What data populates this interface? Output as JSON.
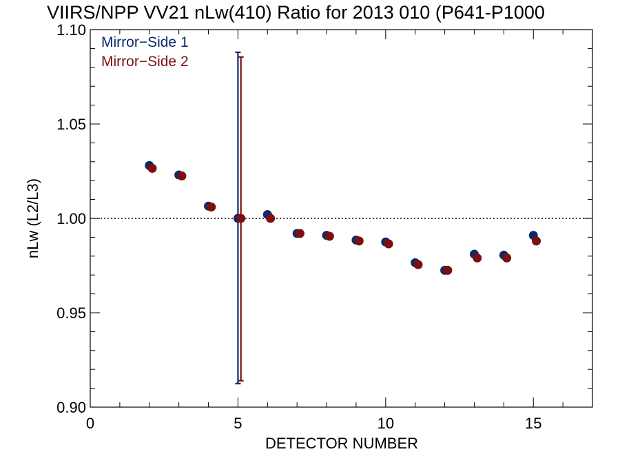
{
  "chart_data": {
    "type": "scatter",
    "title": "VIIRS/NPP VV21 nLw(410) Ratio for 2013 010 (P641-P1000",
    "xlabel": "DETECTOR NUMBER",
    "ylabel": "nLw (L2/L3)",
    "xlim": [
      0,
      17
    ],
    "ylim": [
      0.9,
      1.1
    ],
    "x_ticks": [
      0,
      5,
      10,
      15
    ],
    "x_tick_labels": [
      "0",
      "5",
      "10",
      "15"
    ],
    "y_ticks": [
      0.9,
      0.95,
      1.0,
      1.05,
      1.1
    ],
    "y_tick_labels": [
      "0.90",
      "0.95",
      "1.00",
      "1.05",
      "1.10"
    ],
    "reference_line": 1.0,
    "legend_position": "top-left",
    "series": [
      {
        "name": "Mirror−Side 1",
        "color": "#0d2a6b",
        "points": [
          {
            "x": 2,
            "y": 1.028
          },
          {
            "x": 3,
            "y": 1.023
          },
          {
            "x": 4,
            "y": 1.0065
          },
          {
            "x": 5,
            "y": 1.0
          },
          {
            "x": 6,
            "y": 1.002
          },
          {
            "x": 7,
            "y": 0.992
          },
          {
            "x": 8,
            "y": 0.991
          },
          {
            "x": 9,
            "y": 0.9885
          },
          {
            "x": 10,
            "y": 0.9875
          },
          {
            "x": 11,
            "y": 0.9765
          },
          {
            "x": 12,
            "y": 0.9725
          },
          {
            "x": 13,
            "y": 0.981
          },
          {
            "x": 14,
            "y": 0.9805
          },
          {
            "x": 15,
            "y": 0.991
          }
        ],
        "error_bar": {
          "x": 5,
          "low": 0.9125,
          "high": 1.088
        }
      },
      {
        "name": "Mirror−Side 2",
        "color": "#7a1010",
        "points": [
          {
            "x": 2,
            "y": 1.0265
          },
          {
            "x": 3,
            "y": 1.0225
          },
          {
            "x": 4,
            "y": 1.006
          },
          {
            "x": 5,
            "y": 1.0
          },
          {
            "x": 6,
            "y": 1.0
          },
          {
            "x": 7,
            "y": 0.992
          },
          {
            "x": 8,
            "y": 0.9905
          },
          {
            "x": 9,
            "y": 0.988
          },
          {
            "x": 10,
            "y": 0.9865
          },
          {
            "x": 11,
            "y": 0.9755
          },
          {
            "x": 12,
            "y": 0.9725
          },
          {
            "x": 13,
            "y": 0.979
          },
          {
            "x": 14,
            "y": 0.979
          },
          {
            "x": 15,
            "y": 0.988
          }
        ],
        "error_bar": {
          "x": 5,
          "low": 0.914,
          "high": 1.0855
        }
      }
    ]
  }
}
